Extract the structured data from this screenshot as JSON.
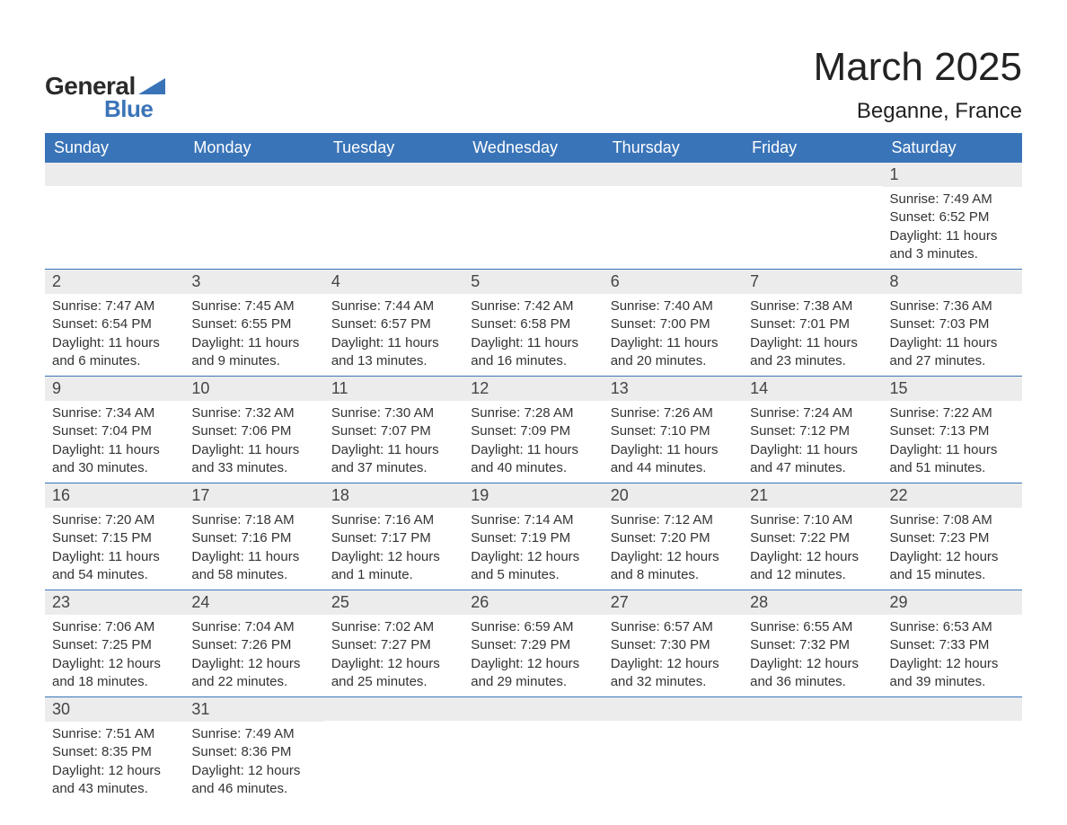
{
  "brand": {
    "word1": "General",
    "word2": "Blue",
    "accent_color": "#3a74b8"
  },
  "title": "March 2025",
  "location": "Beganne, France",
  "colors": {
    "header_bg": "#3a74b8",
    "header_text": "#ffffff",
    "daynum_bg": "#ececec",
    "row_divider": "#3a74b8",
    "body_text": "#333333",
    "page_bg": "#ffffff"
  },
  "fonts": {
    "title_size_pt": 33,
    "location_size_pt": 18,
    "weekday_size_pt": 14,
    "daynum_size_pt": 14,
    "body_size_pt": 11
  },
  "weekdays": [
    "Sunday",
    "Monday",
    "Tuesday",
    "Wednesday",
    "Thursday",
    "Friday",
    "Saturday"
  ],
  "weeks": [
    [
      null,
      null,
      null,
      null,
      null,
      null,
      {
        "n": "1",
        "sunrise": "Sunrise: 7:49 AM",
        "sunset": "Sunset: 6:52 PM",
        "daylight": "Daylight: 11 hours and 3 minutes."
      }
    ],
    [
      {
        "n": "2",
        "sunrise": "Sunrise: 7:47 AM",
        "sunset": "Sunset: 6:54 PM",
        "daylight": "Daylight: 11 hours and 6 minutes."
      },
      {
        "n": "3",
        "sunrise": "Sunrise: 7:45 AM",
        "sunset": "Sunset: 6:55 PM",
        "daylight": "Daylight: 11 hours and 9 minutes."
      },
      {
        "n": "4",
        "sunrise": "Sunrise: 7:44 AM",
        "sunset": "Sunset: 6:57 PM",
        "daylight": "Daylight: 11 hours and 13 minutes."
      },
      {
        "n": "5",
        "sunrise": "Sunrise: 7:42 AM",
        "sunset": "Sunset: 6:58 PM",
        "daylight": "Daylight: 11 hours and 16 minutes."
      },
      {
        "n": "6",
        "sunrise": "Sunrise: 7:40 AM",
        "sunset": "Sunset: 7:00 PM",
        "daylight": "Daylight: 11 hours and 20 minutes."
      },
      {
        "n": "7",
        "sunrise": "Sunrise: 7:38 AM",
        "sunset": "Sunset: 7:01 PM",
        "daylight": "Daylight: 11 hours and 23 minutes."
      },
      {
        "n": "8",
        "sunrise": "Sunrise: 7:36 AM",
        "sunset": "Sunset: 7:03 PM",
        "daylight": "Daylight: 11 hours and 27 minutes."
      }
    ],
    [
      {
        "n": "9",
        "sunrise": "Sunrise: 7:34 AM",
        "sunset": "Sunset: 7:04 PM",
        "daylight": "Daylight: 11 hours and 30 minutes."
      },
      {
        "n": "10",
        "sunrise": "Sunrise: 7:32 AM",
        "sunset": "Sunset: 7:06 PM",
        "daylight": "Daylight: 11 hours and 33 minutes."
      },
      {
        "n": "11",
        "sunrise": "Sunrise: 7:30 AM",
        "sunset": "Sunset: 7:07 PM",
        "daylight": "Daylight: 11 hours and 37 minutes."
      },
      {
        "n": "12",
        "sunrise": "Sunrise: 7:28 AM",
        "sunset": "Sunset: 7:09 PM",
        "daylight": "Daylight: 11 hours and 40 minutes."
      },
      {
        "n": "13",
        "sunrise": "Sunrise: 7:26 AM",
        "sunset": "Sunset: 7:10 PM",
        "daylight": "Daylight: 11 hours and 44 minutes."
      },
      {
        "n": "14",
        "sunrise": "Sunrise: 7:24 AM",
        "sunset": "Sunset: 7:12 PM",
        "daylight": "Daylight: 11 hours and 47 minutes."
      },
      {
        "n": "15",
        "sunrise": "Sunrise: 7:22 AM",
        "sunset": "Sunset: 7:13 PM",
        "daylight": "Daylight: 11 hours and 51 minutes."
      }
    ],
    [
      {
        "n": "16",
        "sunrise": "Sunrise: 7:20 AM",
        "sunset": "Sunset: 7:15 PM",
        "daylight": "Daylight: 11 hours and 54 minutes."
      },
      {
        "n": "17",
        "sunrise": "Sunrise: 7:18 AM",
        "sunset": "Sunset: 7:16 PM",
        "daylight": "Daylight: 11 hours and 58 minutes."
      },
      {
        "n": "18",
        "sunrise": "Sunrise: 7:16 AM",
        "sunset": "Sunset: 7:17 PM",
        "daylight": "Daylight: 12 hours and 1 minute."
      },
      {
        "n": "19",
        "sunrise": "Sunrise: 7:14 AM",
        "sunset": "Sunset: 7:19 PM",
        "daylight": "Daylight: 12 hours and 5 minutes."
      },
      {
        "n": "20",
        "sunrise": "Sunrise: 7:12 AM",
        "sunset": "Sunset: 7:20 PM",
        "daylight": "Daylight: 12 hours and 8 minutes."
      },
      {
        "n": "21",
        "sunrise": "Sunrise: 7:10 AM",
        "sunset": "Sunset: 7:22 PM",
        "daylight": "Daylight: 12 hours and 12 minutes."
      },
      {
        "n": "22",
        "sunrise": "Sunrise: 7:08 AM",
        "sunset": "Sunset: 7:23 PM",
        "daylight": "Daylight: 12 hours and 15 minutes."
      }
    ],
    [
      {
        "n": "23",
        "sunrise": "Sunrise: 7:06 AM",
        "sunset": "Sunset: 7:25 PM",
        "daylight": "Daylight: 12 hours and 18 minutes."
      },
      {
        "n": "24",
        "sunrise": "Sunrise: 7:04 AM",
        "sunset": "Sunset: 7:26 PM",
        "daylight": "Daylight: 12 hours and 22 minutes."
      },
      {
        "n": "25",
        "sunrise": "Sunrise: 7:02 AM",
        "sunset": "Sunset: 7:27 PM",
        "daylight": "Daylight: 12 hours and 25 minutes."
      },
      {
        "n": "26",
        "sunrise": "Sunrise: 6:59 AM",
        "sunset": "Sunset: 7:29 PM",
        "daylight": "Daylight: 12 hours and 29 minutes."
      },
      {
        "n": "27",
        "sunrise": "Sunrise: 6:57 AM",
        "sunset": "Sunset: 7:30 PM",
        "daylight": "Daylight: 12 hours and 32 minutes."
      },
      {
        "n": "28",
        "sunrise": "Sunrise: 6:55 AM",
        "sunset": "Sunset: 7:32 PM",
        "daylight": "Daylight: 12 hours and 36 minutes."
      },
      {
        "n": "29",
        "sunrise": "Sunrise: 6:53 AM",
        "sunset": "Sunset: 7:33 PM",
        "daylight": "Daylight: 12 hours and 39 minutes."
      }
    ],
    [
      {
        "n": "30",
        "sunrise": "Sunrise: 7:51 AM",
        "sunset": "Sunset: 8:35 PM",
        "daylight": "Daylight: 12 hours and 43 minutes."
      },
      {
        "n": "31",
        "sunrise": "Sunrise: 7:49 AM",
        "sunset": "Sunset: 8:36 PM",
        "daylight": "Daylight: 12 hours and 46 minutes."
      },
      null,
      null,
      null,
      null,
      null
    ]
  ]
}
